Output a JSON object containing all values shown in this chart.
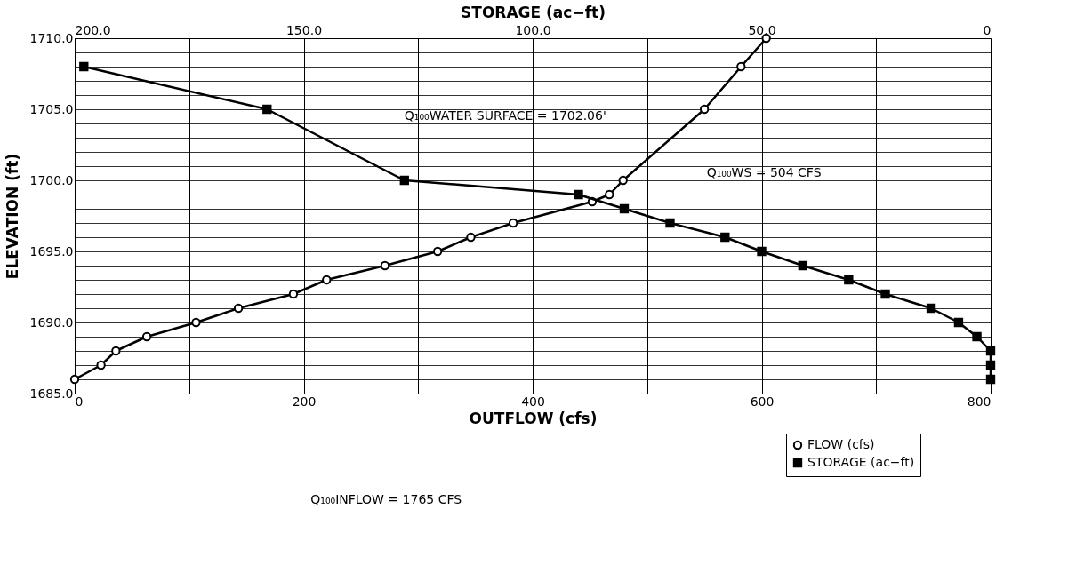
{
  "chart_data": {
    "type": "line",
    "xlabel": "OUTFLOW (cfs)",
    "x2label": "STORAGE (ac−ft)",
    "ylabel": "ELEVATION (ft)",
    "xlim": [
      0,
      800
    ],
    "xticks": [
      0,
      {
        "value": 100,
        "label": null
      },
      200,
      {
        "value": 300,
        "label": null
      },
      400,
      {
        "value": 500,
        "label": null
      },
      600,
      {
        "value": 700,
        "label": null
      },
      800
    ],
    "x2lim": [
      200,
      0
    ],
    "x2ticks": [
      {
        "value": 200,
        "label": "200.0"
      },
      {
        "value": 150,
        "label": "150.0"
      },
      {
        "value": 100,
        "label": "100.0"
      },
      {
        "value": 50,
        "label": "50.0"
      },
      0
    ],
    "ylim": [
      1685,
      1710
    ],
    "yticks": [
      {
        "value": 1685,
        "label": "1685.0"
      },
      {
        "value": 1686,
        "label": null
      },
      {
        "value": 1687,
        "label": null
      },
      {
        "value": 1688,
        "label": null
      },
      {
        "value": 1689,
        "label": null
      },
      {
        "value": 1690,
        "label": "1690.0"
      },
      {
        "value": 1691,
        "label": null
      },
      {
        "value": 1692,
        "label": null
      },
      {
        "value": 1693,
        "label": null
      },
      {
        "value": 1694,
        "label": null
      },
      {
        "value": 1695,
        "label": "1695.0"
      },
      {
        "value": 1696,
        "label": null
      },
      {
        "value": 1697,
        "label": null
      },
      {
        "value": 1698,
        "label": null
      },
      {
        "value": 1699,
        "label": null
      },
      {
        "value": 1700,
        "label": "1700.0"
      },
      {
        "value": 1701,
        "label": null
      },
      {
        "value": 1702,
        "label": null
      },
      {
        "value": 1703,
        "label": null
      },
      {
        "value": 1704,
        "label": null
      },
      {
        "value": 1705,
        "label": "1705.0"
      },
      {
        "value": 1706,
        "label": null
      },
      {
        "value": 1707,
        "label": null
      },
      {
        "value": 1708,
        "label": null
      },
      {
        "value": 1709,
        "label": null
      },
      {
        "value": 1710,
        "label": "1710.0"
      }
    ],
    "grid": true,
    "legend": "bottom right",
    "line_style": "solid",
    "series": [
      {
        "name": "FLOW (cfs)",
        "color": "#000000",
        "marker": "circle",
        "x": [
          0,
          23,
          36,
          63,
          106,
          143,
          191,
          220,
          271,
          317,
          346,
          383,
          452,
          467,
          479,
          550,
          582,
          604
        ],
        "values": [
          1686,
          1687,
          1688,
          1689,
          1690,
          1691,
          1692,
          1693,
          1694,
          1695,
          1696,
          1697,
          1698.5,
          1699,
          1700,
          1705,
          1708,
          1710
        ]
      },
      {
        "name": "STORAGE (ac−ft)",
        "color": "#000000",
        "marker": "square",
        "axis": "x2",
        "x": [
          198,
          158,
          128,
          90,
          80,
          70,
          58,
          50,
          41,
          31,
          23,
          13,
          7,
          3,
          0,
          0,
          0
        ],
        "values": [
          1708,
          1705,
          1700,
          1699,
          1698,
          1697,
          1696,
          1695,
          1694,
          1693,
          1692,
          1691,
          1690,
          1689,
          1688,
          1687,
          1686
        ]
      }
    ],
    "annotations": [
      "Q₁₀₀WATER SURFACE = 1702.06'",
      "Q₁₀₀WS = 504 CFS",
      "Q₁₀₀INFLOW = 1765 CFS"
    ]
  }
}
